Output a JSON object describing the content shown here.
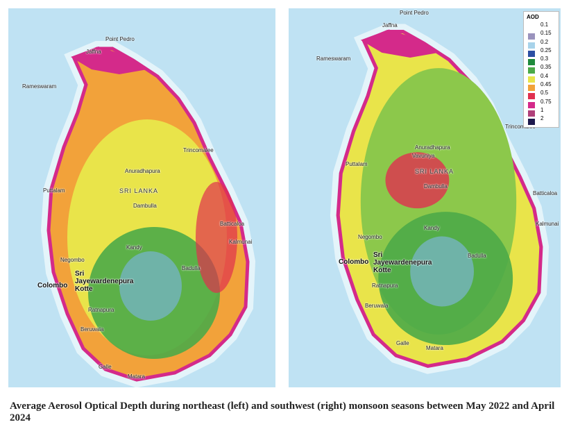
{
  "maps": [
    {
      "labels": [
        "Point Pedro",
        "Jaffna",
        "Rameswaram",
        "Trincomalee",
        "Anuradhapura",
        "SRI LANKA",
        "Puttalam",
        "Dambulla",
        "Batticaloa",
        "Kalmunai",
        "Kandy",
        "Negombo",
        "Colombo",
        "Sri Jayewardenepura Kotte",
        "Badulla",
        "Ratnapura",
        "Beruwala",
        "Galle",
        "Matara"
      ]
    },
    {
      "labels": [
        "Point Pedro",
        "Jaffna",
        "Rameswaram",
        "Vavuniya",
        "Trincomalee",
        "Anuradhapura",
        "Puttalam",
        "SRI LANKA",
        "Dambulla",
        "Batticaloa",
        "Kalmunai",
        "Kandy",
        "Negombo",
        "Colombo",
        "Sri Jayewardenepura Kotte",
        "Badulla",
        "Ratnapura",
        "Beruwala",
        "Galle",
        "Matara"
      ]
    }
  ],
  "legend": {
    "title": "AOD",
    "items": [
      {
        "label": "0.1",
        "color": "#ffffff"
      },
      {
        "label": "0.15",
        "color": "#9a93bd"
      },
      {
        "label": "0.2",
        "color": "#a8d3ea"
      },
      {
        "label": "0.25",
        "color": "#2c4fa3"
      },
      {
        "label": "0.3",
        "color": "#1f8a3b"
      },
      {
        "label": "0.35",
        "color": "#4caa48"
      },
      {
        "label": "0.4",
        "color": "#e9e44a"
      },
      {
        "label": "0.45",
        "color": "#f2a23a"
      },
      {
        "label": "0.5",
        "color": "#e0304f"
      },
      {
        "label": "0.75",
        "color": "#d42a8a"
      },
      {
        "label": "1",
        "color": "#b0407a"
      },
      {
        "label": "2",
        "color": "#1e1a4d"
      }
    ]
  },
  "caption": "Average Aerosol Optical Depth during northeast (left) and southwest (right) monsoon seasons between May 2022 and April 2024"
}
